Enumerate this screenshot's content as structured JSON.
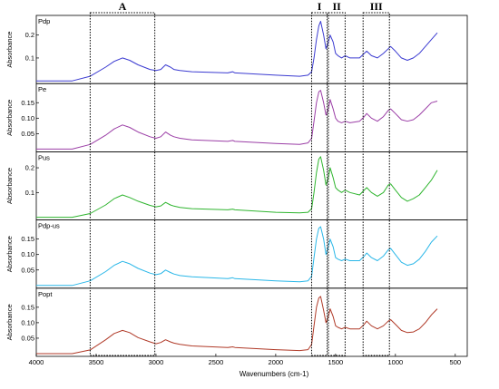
{
  "chart_data": {
    "type": "line",
    "xlabel": "Wavenumbers (cm-1)",
    "x_ticks": [
      4000,
      3500,
      3000,
      2500,
      2000,
      1500,
      1000,
      500
    ],
    "xlim": [
      4000,
      400
    ],
    "x_reversed": true,
    "colors": {
      "Pdp": "#3b3bd1",
      "Pe": "#9b3ea6",
      "Pus": "#2fb52f",
      "Pdp-us": "#2ab7e8",
      "Popt": "#b03a28",
      "region_box": "#000000"
    },
    "regions": [
      {
        "label": "A",
        "from": 3550,
        "to": 3010
      },
      {
        "label": "I",
        "from": 1700,
        "to": 1570
      },
      {
        "label": "II",
        "from": 1560,
        "to": 1420
      },
      {
        "label": "III",
        "from": 1270,
        "to": 1050
      }
    ],
    "panels": [
      {
        "name": "Pdp",
        "ylabel": "Absorbance",
        "ylim": [
          0.0,
          0.27
        ],
        "y_ticks": [
          {
            "v": 0.1,
            "label": "0.1"
          },
          {
            "v": 0.2,
            "label": "0.2"
          }
        ],
        "x": [
          4000,
          3700,
          3550,
          3420,
          3350,
          3280,
          3220,
          3150,
          3050,
          3000,
          2960,
          2920,
          2880,
          2850,
          2800,
          2700,
          2400,
          2360,
          2340,
          2000,
          1800,
          1730,
          1700,
          1680,
          1660,
          1640,
          1625,
          1600,
          1580,
          1560,
          1545,
          1520,
          1500,
          1480,
          1450,
          1420,
          1380,
          1300,
          1260,
          1240,
          1200,
          1150,
          1100,
          1060,
          1040,
          1000,
          950,
          900,
          850,
          800,
          750,
          700,
          650
        ],
        "y": [
          0.0,
          0.0,
          0.02,
          0.06,
          0.085,
          0.1,
          0.09,
          0.07,
          0.05,
          0.045,
          0.05,
          0.07,
          0.06,
          0.05,
          0.045,
          0.04,
          0.035,
          0.04,
          0.035,
          0.025,
          0.02,
          0.025,
          0.04,
          0.1,
          0.18,
          0.24,
          0.26,
          0.2,
          0.14,
          0.17,
          0.2,
          0.17,
          0.12,
          0.11,
          0.1,
          0.11,
          0.1,
          0.1,
          0.12,
          0.13,
          0.11,
          0.1,
          0.12,
          0.14,
          0.15,
          0.13,
          0.1,
          0.09,
          0.1,
          0.12,
          0.15,
          0.18,
          0.21
        ]
      },
      {
        "name": "Pe",
        "ylabel": "Absorbance",
        "ylim": [
          0.0,
          0.2
        ],
        "y_ticks": [
          {
            "v": 0.05,
            "label": "0.05"
          },
          {
            "v": 0.1,
            "label": "0.10"
          },
          {
            "v": 0.15,
            "label": "0.15"
          }
        ],
        "x": [
          4000,
          3700,
          3550,
          3420,
          3350,
          3280,
          3220,
          3150,
          3050,
          3000,
          2960,
          2920,
          2880,
          2850,
          2800,
          2700,
          2400,
          2360,
          2340,
          2000,
          1800,
          1730,
          1700,
          1680,
          1660,
          1640,
          1625,
          1600,
          1580,
          1560,
          1545,
          1520,
          1500,
          1480,
          1450,
          1420,
          1380,
          1300,
          1260,
          1240,
          1200,
          1150,
          1100,
          1060,
          1040,
          1000,
          950,
          900,
          850,
          800,
          750,
          700,
          650
        ],
        "y": [
          0.0,
          0.0,
          0.015,
          0.045,
          0.065,
          0.078,
          0.07,
          0.055,
          0.04,
          0.035,
          0.04,
          0.055,
          0.045,
          0.04,
          0.035,
          0.03,
          0.025,
          0.028,
          0.025,
          0.018,
          0.015,
          0.02,
          0.035,
          0.09,
          0.15,
          0.185,
          0.19,
          0.15,
          0.11,
          0.13,
          0.16,
          0.13,
          0.1,
          0.09,
          0.085,
          0.09,
          0.085,
          0.09,
          0.105,
          0.115,
          0.1,
          0.09,
          0.105,
          0.125,
          0.13,
          0.115,
          0.095,
          0.09,
          0.095,
          0.11,
          0.13,
          0.15,
          0.155
        ]
      },
      {
        "name": "Pus",
        "ylabel": "Absorbance",
        "ylim": [
          0.0,
          0.25
        ],
        "y_ticks": [
          {
            "v": 0.1,
            "label": "0.1"
          },
          {
            "v": 0.2,
            "label": "0.2"
          }
        ],
        "x": [
          4000,
          3700,
          3550,
          3420,
          3350,
          3280,
          3220,
          3150,
          3050,
          3000,
          2960,
          2920,
          2880,
          2850,
          2800,
          2700,
          2400,
          2360,
          2340,
          2000,
          1800,
          1730,
          1700,
          1680,
          1660,
          1640,
          1625,
          1600,
          1580,
          1560,
          1545,
          1520,
          1500,
          1480,
          1450,
          1420,
          1380,
          1300,
          1260,
          1240,
          1200,
          1150,
          1100,
          1060,
          1040,
          1000,
          950,
          900,
          850,
          800,
          750,
          700,
          650
        ],
        "y": [
          0.0,
          0.0,
          0.015,
          0.05,
          0.075,
          0.09,
          0.08,
          0.065,
          0.048,
          0.042,
          0.046,
          0.06,
          0.05,
          0.045,
          0.04,
          0.035,
          0.03,
          0.033,
          0.03,
          0.02,
          0.018,
          0.02,
          0.035,
          0.1,
          0.18,
          0.235,
          0.245,
          0.19,
          0.13,
          0.16,
          0.2,
          0.16,
          0.12,
          0.11,
          0.1,
          0.11,
          0.1,
          0.09,
          0.11,
          0.12,
          0.1,
          0.085,
          0.1,
          0.13,
          0.135,
          0.11,
          0.08,
          0.065,
          0.075,
          0.09,
          0.12,
          0.15,
          0.19
        ]
      },
      {
        "name": "Pdp-us",
        "ylabel": "Absorbance",
        "ylim": [
          0.0,
          0.2
        ],
        "y_ticks": [
          {
            "v": 0.05,
            "label": "0.05"
          },
          {
            "v": 0.1,
            "label": "0.10"
          },
          {
            "v": 0.15,
            "label": "0.15"
          }
        ],
        "x": [
          4000,
          3700,
          3550,
          3420,
          3350,
          3280,
          3220,
          3150,
          3050,
          3000,
          2960,
          2920,
          2880,
          2850,
          2800,
          2700,
          2400,
          2360,
          2340,
          2000,
          1800,
          1730,
          1700,
          1680,
          1660,
          1640,
          1625,
          1600,
          1580,
          1560,
          1545,
          1520,
          1500,
          1480,
          1450,
          1420,
          1380,
          1300,
          1260,
          1240,
          1200,
          1150,
          1100,
          1060,
          1040,
          1000,
          950,
          900,
          850,
          800,
          750,
          700,
          650
        ],
        "y": [
          0.0,
          0.0,
          0.015,
          0.045,
          0.065,
          0.078,
          0.07,
          0.055,
          0.04,
          0.035,
          0.038,
          0.05,
          0.042,
          0.037,
          0.032,
          0.028,
          0.022,
          0.025,
          0.022,
          0.015,
          0.012,
          0.015,
          0.03,
          0.09,
          0.15,
          0.185,
          0.19,
          0.15,
          0.1,
          0.125,
          0.15,
          0.125,
          0.09,
          0.085,
          0.08,
          0.085,
          0.08,
          0.08,
          0.095,
          0.105,
          0.09,
          0.08,
          0.095,
          0.115,
          0.12,
          0.1,
          0.075,
          0.065,
          0.07,
          0.085,
          0.11,
          0.14,
          0.16
        ]
      },
      {
        "name": "Popt",
        "ylabel": "Absorbance",
        "ylim": [
          0.0,
          0.2
        ],
        "y_ticks": [
          {
            "v": 0.05,
            "label": "0.05"
          },
          {
            "v": 0.1,
            "label": "0.10"
          },
          {
            "v": 0.15,
            "label": "0.15"
          }
        ],
        "x": [
          4000,
          3700,
          3550,
          3420,
          3350,
          3280,
          3220,
          3150,
          3050,
          3000,
          2960,
          2920,
          2880,
          2850,
          2800,
          2700,
          2400,
          2360,
          2340,
          2000,
          1800,
          1730,
          1700,
          1680,
          1660,
          1640,
          1625,
          1600,
          1580,
          1560,
          1545,
          1520,
          1500,
          1480,
          1450,
          1420,
          1380,
          1300,
          1260,
          1240,
          1200,
          1150,
          1100,
          1060,
          1040,
          1000,
          950,
          900,
          850,
          800,
          750,
          700,
          650
        ],
        "y": [
          0.0,
          0.0,
          0.012,
          0.045,
          0.065,
          0.075,
          0.068,
          0.052,
          0.038,
          0.032,
          0.036,
          0.045,
          0.038,
          0.034,
          0.03,
          0.025,
          0.02,
          0.022,
          0.02,
          0.013,
          0.01,
          0.013,
          0.03,
          0.09,
          0.15,
          0.18,
          0.185,
          0.14,
          0.1,
          0.12,
          0.145,
          0.12,
          0.09,
          0.085,
          0.08,
          0.085,
          0.08,
          0.08,
          0.095,
          0.105,
          0.09,
          0.08,
          0.09,
          0.105,
          0.11,
          0.095,
          0.075,
          0.068,
          0.07,
          0.08,
          0.1,
          0.125,
          0.145
        ]
      }
    ]
  }
}
